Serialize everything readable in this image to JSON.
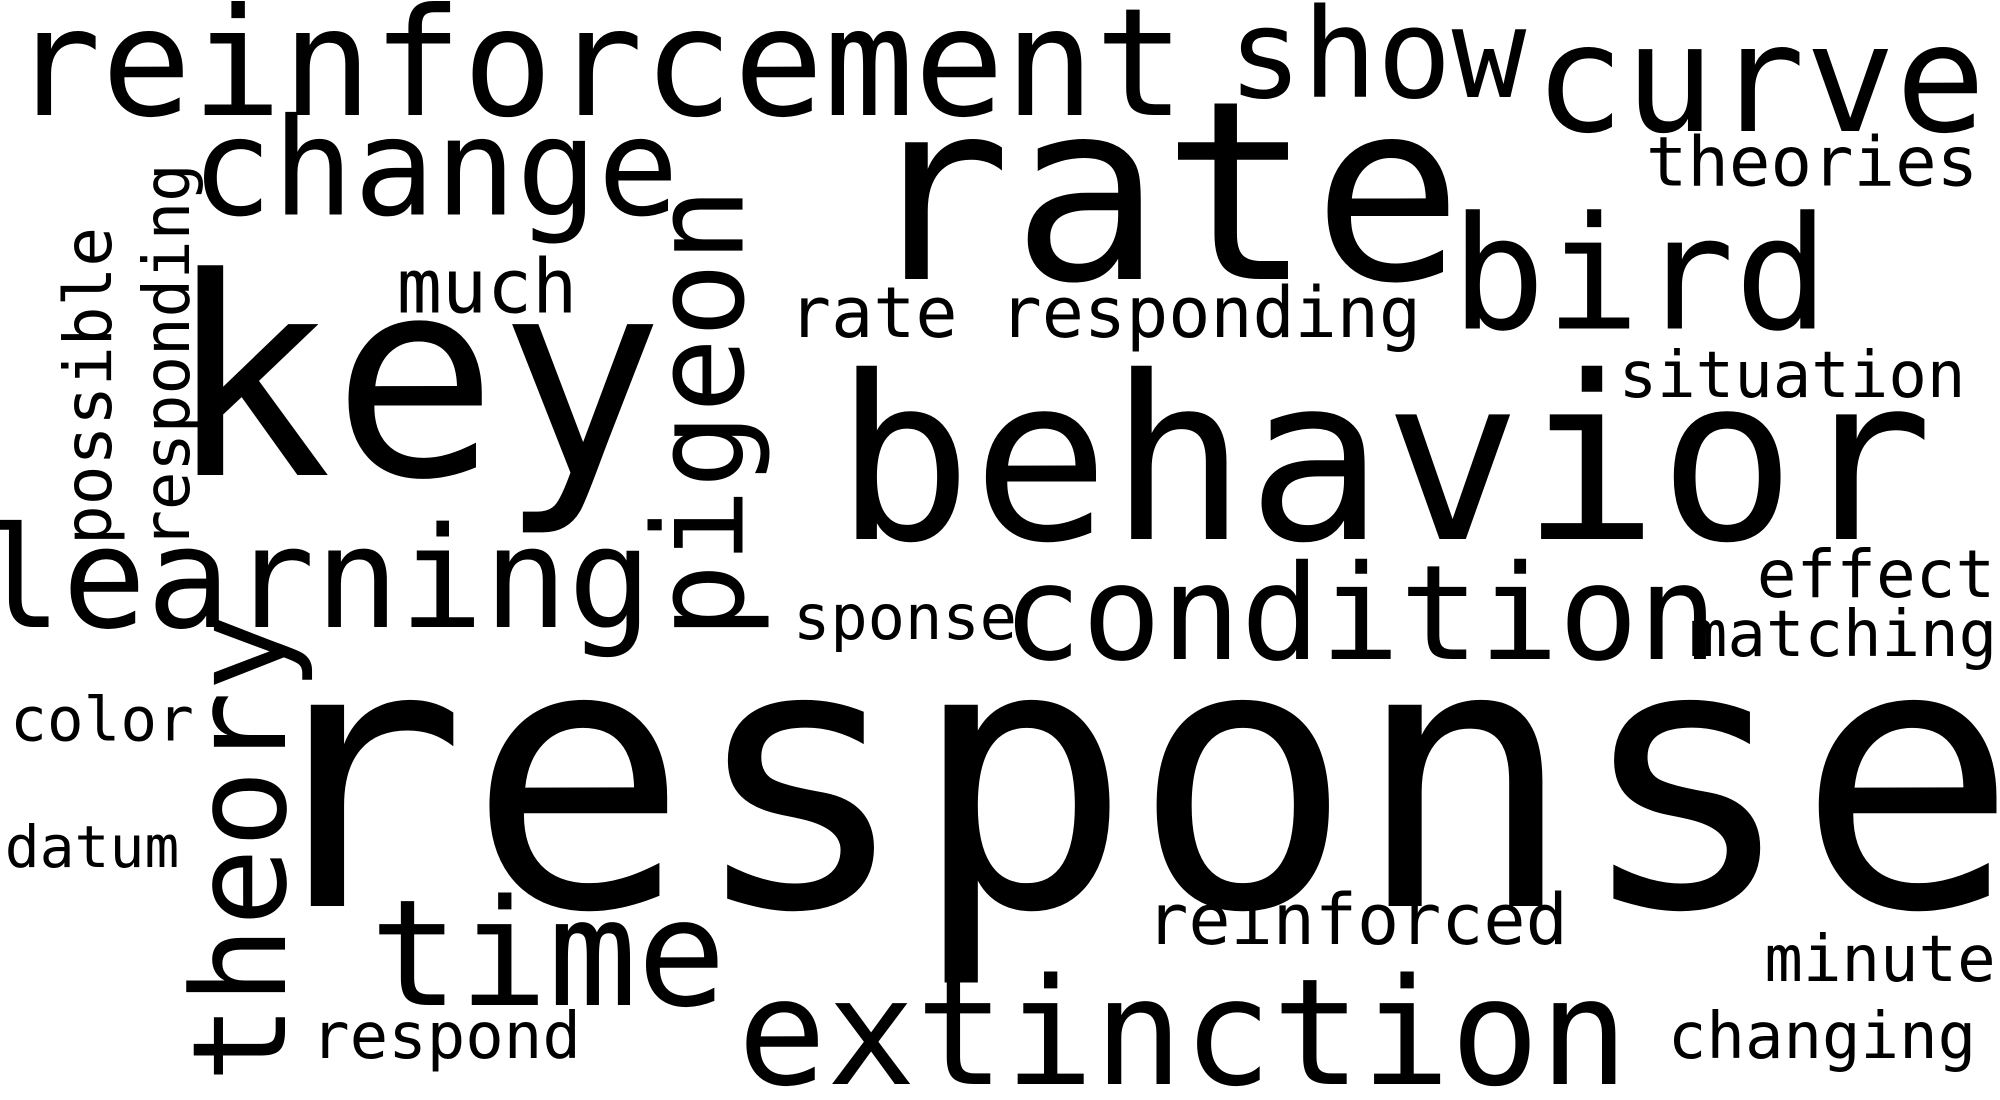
{
  "word_cloud": {
    "background": "#ffffff",
    "text_color": "#000000",
    "words": [
      "reinforcement",
      "show",
      "curve",
      "rate",
      "change",
      "theories",
      "key",
      "bird",
      "much",
      "rate responding",
      "pigeon",
      "possible",
      "responding",
      "behavior",
      "situation",
      "learning",
      "effect",
      "condition",
      "sponse",
      "matching",
      "theory",
      "color",
      "response",
      "datum",
      "time",
      "reinforced",
      "minute",
      "extinction",
      "respond",
      "changing"
    ]
  }
}
